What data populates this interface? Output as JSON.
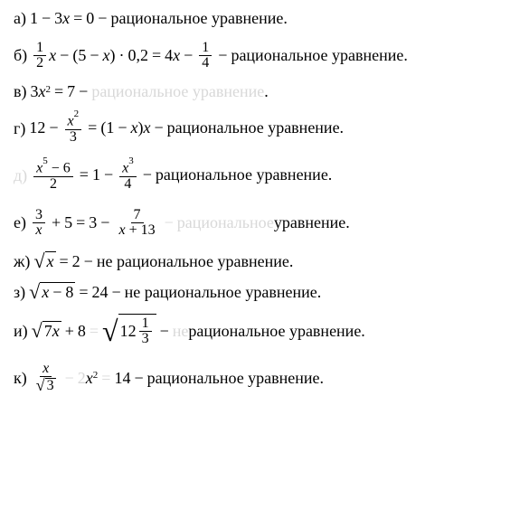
{
  "colors": {
    "text": "#000000",
    "watermark": "#d8d8d8",
    "background": "#ffffff",
    "border": "#000000"
  },
  "typography": {
    "font_family": "Times New Roman, serif",
    "base_fontsize": 18,
    "frac_fontsize": 16,
    "sup_fontsize": 11
  },
  "items": {
    "a": {
      "label": "а)",
      "expr_1": "1",
      "op_1": "−",
      "expr_2": "3",
      "var_1": "x",
      "op_2": "=",
      "expr_3": "0",
      "dash": "−",
      "desc": "рациональное уравнение."
    },
    "b": {
      "label": "б)",
      "frac1_num": "1",
      "frac1_den": "2",
      "var_1": "x",
      "op_1": "−",
      "lp": "(",
      "expr_1": "5",
      "op_2": "−",
      "var_2": "x",
      "rp": ")",
      "op_3": "·",
      "expr_2": "0,2",
      "op_4": "=",
      "expr_3": "4",
      "var_3": "x",
      "op_5": "−",
      "frac2_num": "1",
      "frac2_den": "4",
      "dash": "−",
      "desc": "рациональное уравнение."
    },
    "c": {
      "label": "в)",
      "expr_1": "3",
      "var_1": "x",
      "sup_1": "2",
      "op_1": "=",
      "expr_2": "7",
      "dash": "−",
      "desc_pre": "",
      "desc_water": "рациональное уравнение",
      "desc_post": "."
    },
    "d": {
      "label": "г)",
      "expr_1": "12",
      "op_1": "−",
      "frac1_num_var": "x",
      "frac1_num_sup": "2",
      "frac1_den": "3",
      "op_2": "=",
      "lp": "(",
      "expr_2": "1",
      "op_3": "−",
      "var_2": "x",
      "rp": ")",
      "var_3": "x",
      "dash": "−",
      "desc": "рациональное уравнение."
    },
    "e": {
      "label": "д)",
      "frac1_num_var": "x",
      "frac1_num_sup": "5",
      "frac1_num_op": "−",
      "frac1_num_n": "6",
      "frac1_den": "2",
      "op_1": "=",
      "expr_1": "1",
      "op_2": "−",
      "frac2_num_var": "x",
      "frac2_num_sup": "3",
      "frac2_den": "4",
      "dash": "−",
      "desc": "рациональное уравнение."
    },
    "f": {
      "label": "е)",
      "frac1_num": "3",
      "frac1_den": "x",
      "op_1": "+",
      "expr_1": "5",
      "op_2": "=",
      "expr_2": "3",
      "op_3": "−",
      "frac2_num": "7",
      "frac2_den_var": "x",
      "frac2_den_op": "+",
      "frac2_den_n": "13",
      "dash": "−",
      "desc_water": "рациональное",
      "desc_post": " уравнение."
    },
    "g": {
      "label": "ж)",
      "sqrt_content": "x",
      "op_1": "=",
      "expr_1": "2",
      "dash": "−",
      "desc": "не рациональное уравнение."
    },
    "h": {
      "label": "з)",
      "sqrt_var": "x",
      "sqrt_op": "−",
      "sqrt_n": "8",
      "op_1": "=",
      "expr_1": "24",
      "dash": "−",
      "desc": "не рациональное уравнение."
    },
    "i": {
      "label": "и)",
      "sqrt1_n": "7",
      "sqrt1_var": "x",
      "op_1": "+",
      "expr_1": "8",
      "op_water": "=",
      "sqrt2_n1": "12",
      "sqrt2_frac_num": "1",
      "sqrt2_frac_den": "3",
      "dash": "−",
      "desc_water1": "не",
      "desc_post": " рациональное уравнение."
    },
    "j": {
      "label": "к)",
      "frac1_num": "x",
      "frac1_den_sqrt": "3",
      "op_water1": "−",
      "expr_water1": "2",
      "var_1": "x",
      "sup_1": "2",
      "op_water2": "=",
      "expr_1": "14",
      "dash": "−",
      "desc": "рациональное уравнение."
    }
  }
}
